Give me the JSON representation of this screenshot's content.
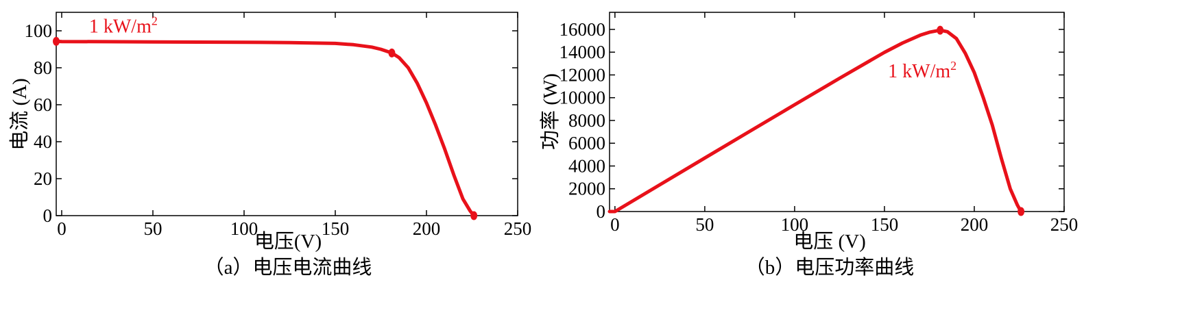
{
  "chart_data": [
    {
      "type": "line",
      "caption": "（a）电压电流曲线",
      "xlabel": "电压(V)",
      "ylabel": "电流 (A)",
      "xlim": [
        -3,
        250
      ],
      "ylim": [
        0,
        110
      ],
      "xticks": [
        0,
        50,
        100,
        150,
        200,
        250
      ],
      "yticks": [
        0,
        20,
        40,
        60,
        80,
        100
      ],
      "grid": false,
      "series_color": "#e8111a",
      "annotation": {
        "text": "1 kW/m",
        "sup": "2",
        "x": 15,
        "y": 99
      },
      "series": [
        {
          "x": [
            -3,
            0,
            25,
            50,
            75,
            100,
            125,
            150,
            160,
            170,
            175,
            181,
            185,
            190,
            195,
            200,
            205,
            210,
            215,
            220,
            224,
            226
          ],
          "values": [
            94.3,
            94.2,
            94.1,
            94.0,
            93.9,
            93.8,
            93.6,
            93.2,
            92.5,
            91.2,
            90.0,
            88.0,
            85.5,
            80.0,
            71.5,
            61.0,
            49.0,
            36.0,
            22.0,
            9.0,
            2.5,
            0
          ]
        }
      ],
      "markers": [
        {
          "x": -3,
          "y": 94.3
        },
        {
          "x": 181,
          "y": 88.0
        },
        {
          "x": 226,
          "y": 0
        }
      ]
    },
    {
      "type": "line",
      "caption": "（b）电压功率曲线",
      "xlabel": "电压 (V)",
      "ylabel": "功率 (W)",
      "xlim": [
        -3,
        250
      ],
      "ylim": [
        0,
        17500
      ],
      "xticks": [
        0,
        50,
        100,
        150,
        200,
        250
      ],
      "yticks": [
        0,
        2000,
        4000,
        6000,
        8000,
        10000,
        12000,
        14000,
        16000
      ],
      "grid": false,
      "series_color": "#e8111a",
      "annotation": {
        "text": "1 kW/m",
        "sup": "2",
        "x": 152,
        "y": 11800
      },
      "series": [
        {
          "x": [
            -3,
            0,
            25,
            50,
            75,
            100,
            125,
            150,
            160,
            170,
            175,
            181,
            185,
            190,
            195,
            200,
            205,
            210,
            215,
            220,
            224,
            226
          ],
          "values": [
            0,
            0,
            2350,
            4700,
            7040,
            9380,
            11700,
            13980,
            14800,
            15500,
            15750,
            15930,
            15800,
            15200,
            13900,
            12200,
            10000,
            7600,
            4700,
            2000,
            560,
            0
          ]
        }
      ],
      "markers": [
        {
          "x": 181,
          "y": 15930
        },
        {
          "x": 226,
          "y": 0
        }
      ]
    }
  ]
}
